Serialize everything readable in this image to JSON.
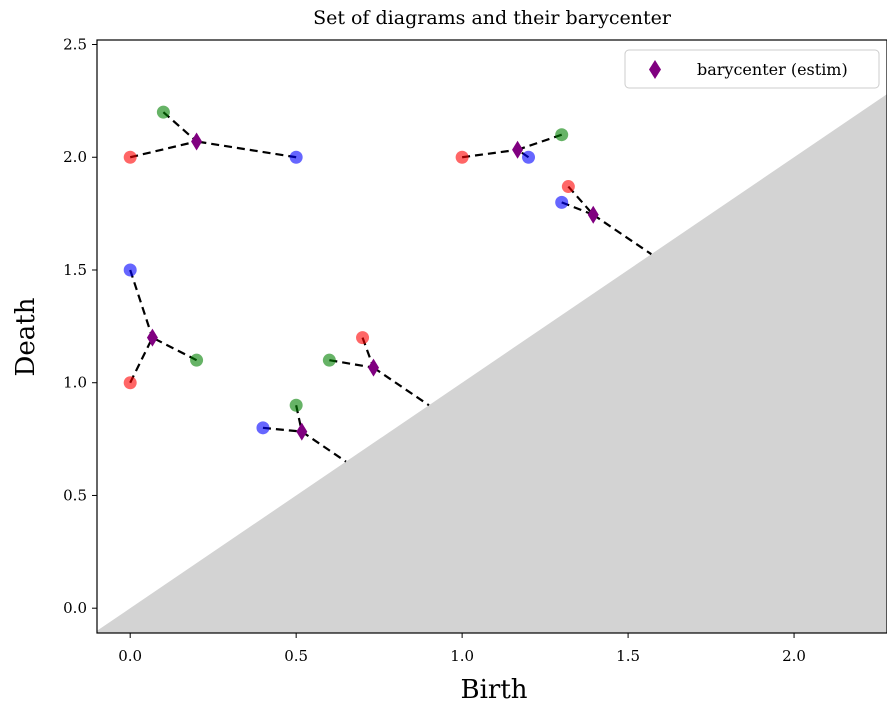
{
  "chart_data": {
    "type": "scatter",
    "title": "Set of diagrams and their barycenter",
    "xlabel": "Birth",
    "ylabel": "Death",
    "xlim": [
      -0.1,
      2.28
    ],
    "ylim": [
      -0.11,
      2.52
    ],
    "xticks": [
      0.0,
      0.5,
      1.0,
      1.5,
      2.0
    ],
    "xtick_labels": [
      "0.0",
      "0.5",
      "1.0",
      "1.5",
      "2.0"
    ],
    "yticks": [
      0.0,
      0.5,
      1.0,
      1.5,
      2.0,
      2.5
    ],
    "ytick_labels": [
      "0.0",
      "0.5",
      "1.0",
      "1.5",
      "2.0",
      "2.5"
    ],
    "grid": false,
    "diagonal_fill_color": "#d3d3d3",
    "diagram_points": [
      {
        "color": "#ff0000",
        "points": [
          [
            0.0,
            2.0
          ],
          [
            0.0,
            1.0
          ],
          [
            1.0,
            2.0
          ],
          [
            0.7,
            1.2
          ],
          [
            1.32,
            1.87
          ]
        ]
      },
      {
        "color": "#008000",
        "points": [
          [
            0.1,
            2.2
          ],
          [
            0.2,
            1.1
          ],
          [
            0.6,
            1.1
          ],
          [
            0.5,
            0.9
          ],
          [
            1.3,
            2.1
          ]
        ]
      },
      {
        "color": "#0000ff",
        "points": [
          [
            0.5,
            2.0
          ],
          [
            0.0,
            1.5
          ],
          [
            1.2,
            2.0
          ],
          [
            0.4,
            0.8
          ],
          [
            1.3,
            1.8
          ]
        ]
      }
    ],
    "barycenter": {
      "name": "barycenter (estim)",
      "color": "#800080",
      "points": [
        [
          0.2,
          2.07
        ],
        [
          0.067,
          1.2
        ],
        [
          1.167,
          2.033
        ],
        [
          0.733,
          1.067
        ],
        [
          0.517,
          0.783
        ],
        [
          1.395,
          1.745
        ]
      ]
    },
    "matching_lines": [
      [
        [
          0.0,
          2.0
        ],
        [
          0.2,
          2.07
        ]
      ],
      [
        [
          0.1,
          2.2
        ],
        [
          0.2,
          2.07
        ]
      ],
      [
        [
          0.5,
          2.0
        ],
        [
          0.2,
          2.07
        ]
      ],
      [
        [
          0.0,
          1.5
        ],
        [
          0.067,
          1.2
        ]
      ],
      [
        [
          0.0,
          1.0
        ],
        [
          0.067,
          1.2
        ]
      ],
      [
        [
          0.2,
          1.1
        ],
        [
          0.067,
          1.2
        ]
      ],
      [
        [
          1.0,
          2.0
        ],
        [
          1.167,
          2.033
        ]
      ],
      [
        [
          1.2,
          2.0
        ],
        [
          1.167,
          2.033
        ]
      ],
      [
        [
          1.3,
          2.1
        ],
        [
          1.167,
          2.033
        ]
      ],
      [
        [
          0.6,
          1.1
        ],
        [
          0.733,
          1.067
        ]
      ],
      [
        [
          0.7,
          1.2
        ],
        [
          0.733,
          1.067
        ]
      ],
      [
        [
          0.733,
          1.067
        ],
        [
          0.9,
          0.9
        ]
      ],
      [
        [
          0.4,
          0.8
        ],
        [
          0.517,
          0.783
        ]
      ],
      [
        [
          0.5,
          0.9
        ],
        [
          0.517,
          0.783
        ]
      ],
      [
        [
          0.517,
          0.783
        ],
        [
          0.65,
          0.65
        ]
      ],
      [
        [
          1.32,
          1.87
        ],
        [
          1.395,
          1.745
        ]
      ],
      [
        [
          1.3,
          1.8
        ],
        [
          1.395,
          1.745
        ]
      ],
      [
        [
          1.395,
          1.745
        ],
        [
          1.57,
          1.57
        ]
      ]
    ],
    "legend": {
      "placement": "top-right",
      "entries": [
        "barycenter (estim)"
      ]
    }
  }
}
